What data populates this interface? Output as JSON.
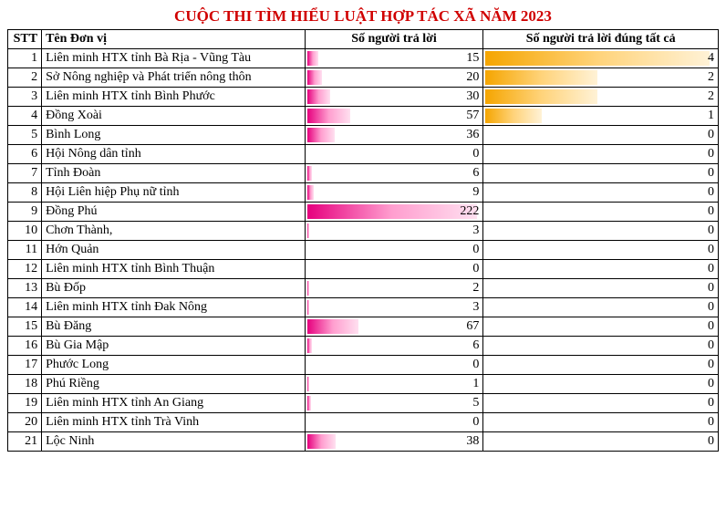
{
  "title": "CUỘC THI TÌM HIỂU LUẬT HỢP TÁC XÃ NĂM 2023",
  "columns": [
    "STT",
    "Tên Đơn vị",
    "Số người trả lời",
    "Số người trả lời đúng tất cả"
  ],
  "resp_max": 222,
  "correct_max": 4,
  "bar_colors": {
    "resp": "#e6007e",
    "correct": "#f5a500"
  },
  "title_color": "#d00000",
  "rows": [
    {
      "stt": 1,
      "name": "Liên minh HTX tỉnh Bà Rịa - Vũng Tàu",
      "resp": 15,
      "correct": 4
    },
    {
      "stt": 2,
      "name": "Sở Nông nghiệp và Phát triển nông thôn",
      "resp": 20,
      "correct": 2
    },
    {
      "stt": 3,
      "name": "Liên minh HTX tỉnh Bình Phước",
      "resp": 30,
      "correct": 2
    },
    {
      "stt": 4,
      "name": "Đồng Xoài",
      "resp": 57,
      "correct": 1
    },
    {
      "stt": 5,
      "name": "Bình Long",
      "resp": 36,
      "correct": 0
    },
    {
      "stt": 6,
      "name": "Hội Nông dân tỉnh",
      "resp": 0,
      "correct": 0
    },
    {
      "stt": 7,
      "name": "Tỉnh Đoàn",
      "resp": 6,
      "correct": 0
    },
    {
      "stt": 8,
      "name": "Hội Liên hiệp Phụ nữ tỉnh",
      "resp": 9,
      "correct": 0
    },
    {
      "stt": 9,
      "name": "Đồng Phú",
      "resp": 222,
      "correct": 0
    },
    {
      "stt": 10,
      "name": "Chơn Thành,",
      "resp": 3,
      "correct": 0
    },
    {
      "stt": 11,
      "name": "Hớn Quản",
      "resp": 0,
      "correct": 0
    },
    {
      "stt": 12,
      "name": "Liên minh HTX tỉnh Bình Thuận",
      "resp": 0,
      "correct": 0
    },
    {
      "stt": 13,
      "name": "Bù Đốp",
      "resp": 2,
      "correct": 0
    },
    {
      "stt": 14,
      "name": "Liên minh HTX tỉnh Đak Nông",
      "resp": 3,
      "correct": 0
    },
    {
      "stt": 15,
      "name": "Bù Đăng",
      "resp": 67,
      "correct": 0
    },
    {
      "stt": 16,
      "name": "Bù Gia Mập",
      "resp": 6,
      "correct": 0
    },
    {
      "stt": 17,
      "name": "Phước Long",
      "resp": 0,
      "correct": 0
    },
    {
      "stt": 18,
      "name": "Phú Riềng",
      "resp": 1,
      "correct": 0
    },
    {
      "stt": 19,
      "name": "Liên minh HTX tỉnh An Giang",
      "resp": 5,
      "correct": 0
    },
    {
      "stt": 20,
      "name": "Liên minh HTX tỉnh Trà Vinh",
      "resp": 0,
      "correct": 0
    },
    {
      "stt": 21,
      "name": "Lộc Ninh",
      "resp": 38,
      "correct": 0
    }
  ]
}
